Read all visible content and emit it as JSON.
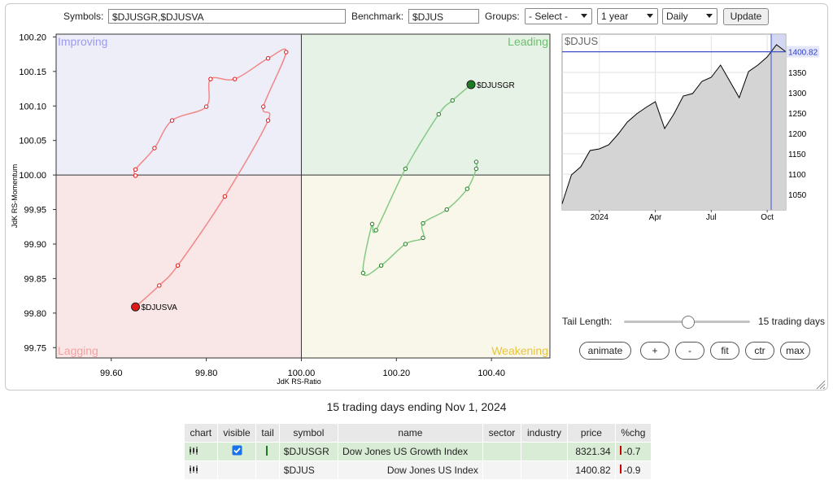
{
  "toolbar": {
    "symbols_label": "Symbols:",
    "symbols": "$DJUSGR,$DJUSVA",
    "benchmark_label": "Benchmark:",
    "benchmark": "$DJUS",
    "groups_label": "Groups:",
    "groups": "- Select -",
    "period": "1 year",
    "frequency": "Daily",
    "update": "Update"
  },
  "chart_data": [
    {
      "type": "rrg",
      "x_label": "JdK RS-Ratio",
      "y_label": "JdK RS-Momentum",
      "quadrants": {
        "improving": "Improving",
        "leading": "Leading",
        "lagging": "Lagging",
        "weakening": "Weakening"
      },
      "center": {
        "x": 100,
        "y": 100
      },
      "xlim": [
        99.484,
        100.523
      ],
      "ylim": [
        99.735,
        100.204
      ],
      "xticks": [
        {
          "value": 99.6,
          "label": "99.60"
        },
        {
          "value": 99.8,
          "label": "99.80"
        },
        {
          "value": 100,
          "label": "100.00"
        },
        {
          "value": 100.2,
          "label": "100.20"
        },
        {
          "value": 100.4,
          "label": "100.40"
        }
      ],
      "yticks": [
        {
          "value": 99.75,
          "label": "99.75"
        },
        {
          "value": 99.8,
          "label": "99.80"
        },
        99.85,
        {
          "value": 99.9,
          "label": "99.90"
        },
        99.95,
        {
          "value": 100,
          "label": "100.00"
        },
        100.05,
        {
          "value": 100.1,
          "label": "100.10"
        },
        100.15,
        {
          "value": 100.2,
          "label": "100.20"
        }
      ],
      "series": [
        {
          "name": "$DJUSGR",
          "color": "#86c986",
          "head_color": "#1f7a1f",
          "x": [
            100.368,
            100.368,
            100.349,
            100.306,
            100.256,
            100.256,
            100.219,
            100.168,
            100.13,
            100.149,
            100.157,
            100.219,
            100.289,
            100.318,
            100.357
          ],
          "y": [
            100.019,
            100.009,
            99.98,
            99.95,
            99.93,
            99.909,
            99.9,
            99.869,
            99.858,
            99.929,
            99.92,
            100.009,
            100.088,
            100.108,
            100.131
          ]
        },
        {
          "name": "$DJUSVA",
          "color": "#f08888",
          "head_color": "#e01818",
          "x": [
            99.651,
            99.651,
            99.691,
            99.728,
            99.8,
            99.809,
            99.86,
            99.93,
            99.968,
            99.92,
            99.93,
            99.839,
            99.74,
            99.701,
            99.651
          ],
          "y": [
            99.999,
            100.008,
            100.039,
            100.079,
            100.099,
            100.139,
            100.139,
            100.169,
            100.178,
            100.099,
            100.079,
            99.969,
            99.869,
            99.84,
            99.809
          ]
        }
      ]
    },
    {
      "type": "line",
      "title": "$DJUS",
      "color": "#000000",
      "grid": true,
      "categories": [
        null,
        null,
        null,
        null,
        "2024",
        null,
        null,
        null,
        null,
        null,
        "Apr",
        null,
        null,
        null,
        null,
        null,
        "Jul",
        null,
        null,
        null,
        null,
        null,
        "Oct",
        null,
        null
      ],
      "values": [
        1027,
        1098,
        1118,
        1158,
        1162,
        1172,
        1198,
        1228,
        1248,
        1264,
        1278,
        1212,
        1248,
        1292,
        1298,
        1328,
        1338,
        1368,
        1328,
        1288,
        1352,
        1368,
        1388,
        1418,
        1400.82
      ],
      "ylim": [
        1012,
        1444
      ],
      "yticks": [
        1050,
        1100,
        1150,
        1200,
        1250,
        1300,
        1350
      ]
    }
  ],
  "controls": {
    "tail_label": "Tail Length:",
    "tail_value": "15 trading days",
    "buttons": [
      "animate",
      "+",
      "-",
      "fit",
      "ctr",
      "max"
    ]
  },
  "caption": "15 trading days ending Nov 1, 2024",
  "table": {
    "columns": [
      "chart",
      "visible",
      "tail",
      "symbol",
      "name",
      "sector",
      "industry",
      "price",
      "%chg"
    ],
    "rows": [
      {
        "symbol": "$DJUSGR",
        "name": "Dow Jones US Growth Index",
        "price": 8321.34,
        "change": -0.7
      },
      {
        "symbol": "$DJUS",
        "name": "Dow Jones US Index",
        "price": 1400.82,
        "change": -0.9
      }
    ]
  }
}
